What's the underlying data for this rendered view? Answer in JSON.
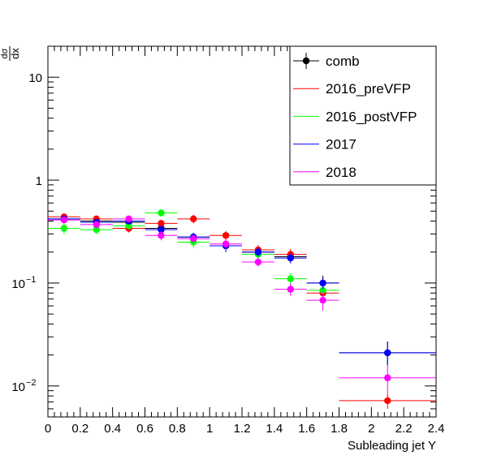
{
  "chart_data": {
    "type": "scatter",
    "title": "",
    "xlabel": "Subleading jet Y",
    "ylabel": "",
    "ylabel_frac": {
      "num": "dσ",
      "den": "dx"
    },
    "xlim": [
      0,
      2.4
    ],
    "ylim": [
      0.005,
      20
    ],
    "log_y": true,
    "grid": false,
    "legend_position": "top-right",
    "x_ticks": [
      0,
      0.2,
      0.4,
      0.6,
      0.8,
      1,
      1.2,
      1.4,
      1.6,
      1.8,
      2,
      2.2,
      2.4
    ],
    "x_tick_labels": [
      "0",
      "0.2",
      "0.4",
      "0.6",
      "0.8",
      "1",
      "1.2",
      "1.4",
      "1.6",
      "1.8",
      "2",
      "2.2",
      "2.4"
    ],
    "y_ticks": [
      {
        "value": 0.01,
        "base": "10",
        "exp": "−2",
        "label": ""
      },
      {
        "value": 0.1,
        "base": "10",
        "exp": "−1",
        "label": ""
      },
      {
        "value": 1,
        "base": "",
        "exp": "",
        "label": "1"
      },
      {
        "value": 10,
        "base": "",
        "exp": "",
        "label": "10"
      }
    ],
    "series": [
      {
        "name": "comb",
        "color": "#000000",
        "style": "marker",
        "points": [
          {
            "x": 0.1,
            "xerr": 0.1,
            "y": 0.42,
            "ylo": 0.4,
            "yhi": 0.44
          },
          {
            "x": 0.3,
            "xerr": 0.1,
            "y": 0.4,
            "ylo": 0.38,
            "yhi": 0.42
          },
          {
            "x": 0.5,
            "xerr": 0.1,
            "y": 0.39,
            "ylo": 0.37,
            "yhi": 0.41
          },
          {
            "x": 0.7,
            "xerr": 0.1,
            "y": 0.34,
            "ylo": 0.31,
            "yhi": 0.37
          },
          {
            "x": 0.9,
            "xerr": 0.1,
            "y": 0.28,
            "ylo": 0.26,
            "yhi": 0.3
          },
          {
            "x": 1.1,
            "xerr": 0.1,
            "y": 0.23,
            "ylo": 0.21,
            "yhi": 0.25
          },
          {
            "x": 1.3,
            "xerr": 0.1,
            "y": 0.2,
            "ylo": 0.18,
            "yhi": 0.22
          },
          {
            "x": 1.5,
            "xerr": 0.1,
            "y": 0.18,
            "ylo": 0.16,
            "yhi": 0.2
          },
          {
            "x": 1.7,
            "xerr": 0.1,
            "y": 0.1,
            "ylo": 0.085,
            "yhi": 0.118
          },
          {
            "x": 2.1,
            "xerr": 0.3,
            "y": 0.021,
            "ylo": 0.016,
            "yhi": 0.027
          }
        ]
      },
      {
        "name": "2016_preVFP",
        "color": "#ff0000",
        "style": "line",
        "points": [
          {
            "x": 0.1,
            "xerr": 0.1,
            "y": 0.44,
            "ylo": 0.41,
            "yhi": 0.47
          },
          {
            "x": 0.3,
            "xerr": 0.1,
            "y": 0.42,
            "ylo": 0.39,
            "yhi": 0.45
          },
          {
            "x": 0.5,
            "xerr": 0.1,
            "y": 0.34,
            "ylo": 0.31,
            "yhi": 0.37
          },
          {
            "x": 0.7,
            "xerr": 0.1,
            "y": 0.38,
            "ylo": 0.35,
            "yhi": 0.41
          },
          {
            "x": 0.9,
            "xerr": 0.1,
            "y": 0.42,
            "ylo": 0.38,
            "yhi": 0.46
          },
          {
            "x": 1.1,
            "xerr": 0.1,
            "y": 0.29,
            "ylo": 0.26,
            "yhi": 0.32
          },
          {
            "x": 1.3,
            "xerr": 0.1,
            "y": 0.21,
            "ylo": 0.185,
            "yhi": 0.235
          },
          {
            "x": 1.5,
            "xerr": 0.1,
            "y": 0.19,
            "ylo": 0.165,
            "yhi": 0.215
          },
          {
            "x": 1.7,
            "xerr": 0.1,
            "y": 0.08,
            "ylo": 0.068,
            "yhi": 0.094
          },
          {
            "x": 2.1,
            "xerr": 0.3,
            "y": 0.0072,
            "ylo": 0.006,
            "yhi": 0.0085
          }
        ]
      },
      {
        "name": "2016_postVFP",
        "color": "#00ff00",
        "style": "line",
        "points": [
          {
            "x": 0.1,
            "xerr": 0.1,
            "y": 0.34,
            "ylo": 0.3,
            "yhi": 0.38
          },
          {
            "x": 0.3,
            "xerr": 0.1,
            "y": 0.33,
            "ylo": 0.3,
            "yhi": 0.36
          },
          {
            "x": 0.5,
            "xerr": 0.1,
            "y": 0.36,
            "ylo": 0.33,
            "yhi": 0.39
          },
          {
            "x": 0.7,
            "xerr": 0.1,
            "y": 0.48,
            "ylo": 0.45,
            "yhi": 0.51
          },
          {
            "x": 0.9,
            "xerr": 0.1,
            "y": 0.25,
            "ylo": 0.22,
            "yhi": 0.28
          },
          {
            "x": 1.1,
            "xerr": 0.1,
            "y": 0.23,
            "ylo": 0.2,
            "yhi": 0.26
          },
          {
            "x": 1.3,
            "xerr": 0.1,
            "y": 0.19,
            "ylo": 0.17,
            "yhi": 0.21
          },
          {
            "x": 1.5,
            "xerr": 0.1,
            "y": 0.11,
            "ylo": 0.095,
            "yhi": 0.125
          },
          {
            "x": 1.7,
            "xerr": 0.1,
            "y": 0.085,
            "ylo": 0.074,
            "yhi": 0.096
          }
        ]
      },
      {
        "name": "2017",
        "color": "#0000ff",
        "style": "line",
        "points": [
          {
            "x": 0.1,
            "xerr": 0.1,
            "y": 0.42,
            "ylo": 0.39,
            "yhi": 0.45
          },
          {
            "x": 0.3,
            "xerr": 0.1,
            "y": 0.39,
            "ylo": 0.36,
            "yhi": 0.42
          },
          {
            "x": 0.5,
            "xerr": 0.1,
            "y": 0.4,
            "ylo": 0.37,
            "yhi": 0.43
          },
          {
            "x": 0.7,
            "xerr": 0.1,
            "y": 0.33,
            "ylo": 0.3,
            "yhi": 0.36
          },
          {
            "x": 0.9,
            "xerr": 0.1,
            "y": 0.28,
            "ylo": 0.25,
            "yhi": 0.31
          },
          {
            "x": 1.1,
            "xerr": 0.1,
            "y": 0.23,
            "ylo": 0.2,
            "yhi": 0.26
          },
          {
            "x": 1.3,
            "xerr": 0.1,
            "y": 0.2,
            "ylo": 0.18,
            "yhi": 0.22
          },
          {
            "x": 1.5,
            "xerr": 0.1,
            "y": 0.175,
            "ylo": 0.155,
            "yhi": 0.195
          },
          {
            "x": 1.7,
            "xerr": 0.1,
            "y": 0.1,
            "ylo": 0.087,
            "yhi": 0.115
          },
          {
            "x": 2.1,
            "xerr": 0.3,
            "y": 0.021,
            "ylo": 0.016,
            "yhi": 0.027
          }
        ]
      },
      {
        "name": "2018",
        "color": "#ff00ff",
        "style": "line",
        "points": [
          {
            "x": 0.1,
            "xerr": 0.1,
            "y": 0.41,
            "ylo": 0.38,
            "yhi": 0.44
          },
          {
            "x": 0.3,
            "xerr": 0.1,
            "y": 0.37,
            "ylo": 0.34,
            "yhi": 0.4
          },
          {
            "x": 0.5,
            "xerr": 0.1,
            "y": 0.42,
            "ylo": 0.39,
            "yhi": 0.45
          },
          {
            "x": 0.7,
            "xerr": 0.1,
            "y": 0.29,
            "ylo": 0.26,
            "yhi": 0.32
          },
          {
            "x": 0.9,
            "xerr": 0.1,
            "y": 0.27,
            "ylo": 0.245,
            "yhi": 0.295
          },
          {
            "x": 1.1,
            "xerr": 0.1,
            "y": 0.24,
            "ylo": 0.215,
            "yhi": 0.265
          },
          {
            "x": 1.3,
            "xerr": 0.1,
            "y": 0.16,
            "ylo": 0.145,
            "yhi": 0.175
          },
          {
            "x": 1.5,
            "xerr": 0.1,
            "y": 0.087,
            "ylo": 0.075,
            "yhi": 0.1
          },
          {
            "x": 1.7,
            "xerr": 0.1,
            "y": 0.068,
            "ylo": 0.054,
            "yhi": 0.082
          },
          {
            "x": 2.1,
            "xerr": 0.3,
            "y": 0.012,
            "ylo": 0.0085,
            "yhi": 0.016
          }
        ]
      }
    ]
  }
}
